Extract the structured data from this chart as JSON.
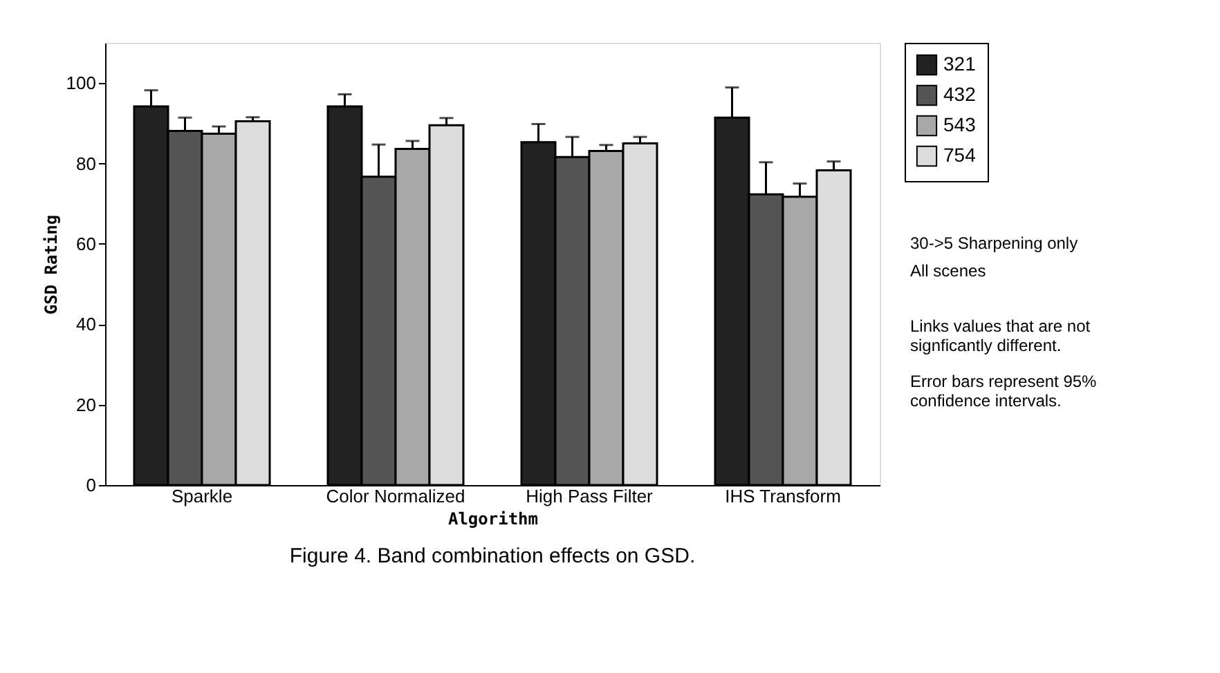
{
  "chart_data": {
    "type": "bar",
    "title": "Figure 4. Band combination effects on GSD.",
    "xlabel": "Algorithm",
    "ylabel": "GSD Rating",
    "categories": [
      "Sparkle",
      "Color Normalized",
      "High Pass Filter",
      "IHS Transform"
    ],
    "series": [
      {
        "name": "321",
        "color": "#222222",
        "values": [
          94.2,
          94.2,
          85.3,
          91.4
        ],
        "errors": [
          4,
          3,
          4.5,
          7.5
        ]
      },
      {
        "name": "432",
        "color": "#555555",
        "values": [
          88.1,
          76.7,
          81.6,
          72.3
        ],
        "errors": [
          3.3,
          8,
          5,
          8
        ]
      },
      {
        "name": "543",
        "color": "#a8a8a8",
        "values": [
          87.4,
          83.6,
          83.1,
          71.7
        ],
        "errors": [
          1.8,
          2,
          1.5,
          3.3
        ]
      },
      {
        "name": "754",
        "color": "#dcdcdc",
        "values": [
          90.5,
          89.5,
          85.0,
          78.3
        ],
        "errors": [
          1,
          1.8,
          1.6,
          2.2
        ]
      }
    ],
    "ylim": [
      0,
      110
    ],
    "yticks": [
      0,
      20,
      40,
      60,
      80,
      100
    ],
    "grid": false,
    "legend": "top right",
    "annotations": [
      "30->5 Sharpening only",
      "All scenes",
      "Links values that are not signficantly different.",
      "Error bars represent 95% confidence intervals."
    ]
  }
}
